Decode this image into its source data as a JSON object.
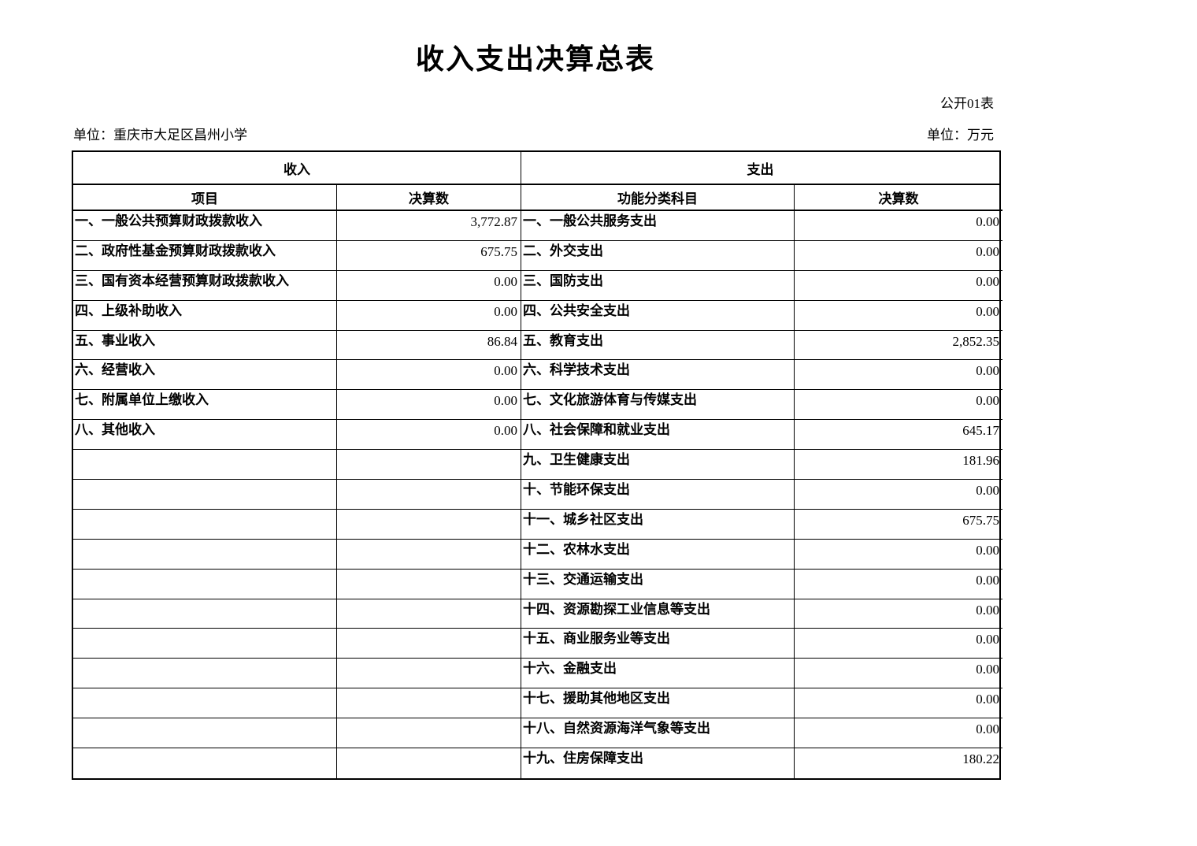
{
  "page": {
    "title": "收入支出决算总表",
    "table_code": "公开01表",
    "unit_name": "单位：重庆市大足区昌州小学",
    "unit_measure": "单位：万元"
  },
  "table": {
    "income_header": "收入",
    "expense_header": "支出",
    "columns": {
      "income_item": "项目",
      "income_amount": "决算数",
      "expense_item": "功能分类科目",
      "expense_amount": "决算数"
    },
    "income_rows": [
      {
        "label": "一、一般公共预算财政拨款收入",
        "value": "3,772.87"
      },
      {
        "label": "二、政府性基金预算财政拨款收入",
        "value": "675.75"
      },
      {
        "label": "三、国有资本经营预算财政拨款收入",
        "value": "0.00"
      },
      {
        "label": "四、上级补助收入",
        "value": "0.00"
      },
      {
        "label": "五、事业收入",
        "value": "86.84"
      },
      {
        "label": "六、经营收入",
        "value": "0.00"
      },
      {
        "label": "七、附属单位上缴收入",
        "value": "0.00"
      },
      {
        "label": "八、其他收入",
        "value": "0.00"
      }
    ],
    "expense_rows": [
      {
        "label": "一、一般公共服务支出",
        "value": "0.00"
      },
      {
        "label": "二、外交支出",
        "value": "0.00"
      },
      {
        "label": "三、国防支出",
        "value": "0.00"
      },
      {
        "label": "四、公共安全支出",
        "value": "0.00"
      },
      {
        "label": "五、教育支出",
        "value": "2,852.35"
      },
      {
        "label": "六、科学技术支出",
        "value": "0.00"
      },
      {
        "label": "七、文化旅游体育与传媒支出",
        "value": "0.00"
      },
      {
        "label": "八、社会保障和就业支出",
        "value": "645.17"
      },
      {
        "label": "九、卫生健康支出",
        "value": "181.96"
      },
      {
        "label": "十、节能环保支出",
        "value": "0.00"
      },
      {
        "label": "十一、城乡社区支出",
        "value": "675.75"
      },
      {
        "label": "十二、农林水支出",
        "value": "0.00"
      },
      {
        "label": "十三、交通运输支出",
        "value": "0.00"
      },
      {
        "label": "十四、资源勘探工业信息等支出",
        "value": "0.00"
      },
      {
        "label": "十五、商业服务业等支出",
        "value": "0.00"
      },
      {
        "label": "十六、金融支出",
        "value": "0.00"
      },
      {
        "label": "十七、援助其他地区支出",
        "value": "0.00"
      },
      {
        "label": "十八、自然资源海洋气象等支出",
        "value": "0.00"
      },
      {
        "label": "十九、住房保障支出",
        "value": "180.22"
      }
    ]
  }
}
